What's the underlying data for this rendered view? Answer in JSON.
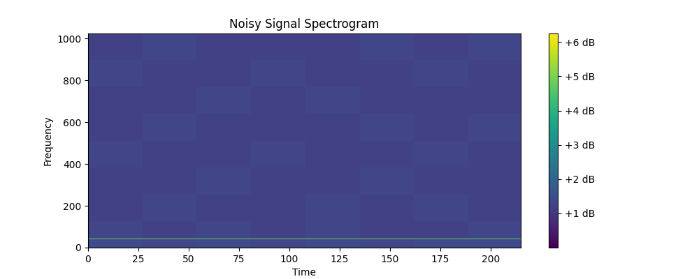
{
  "chart_data": {
    "type": "heatmap",
    "title": "Noisy Signal Spectrogram",
    "x_label": "Time",
    "y_label": "Frequency",
    "xlim": [
      0,
      215
    ],
    "xticks": [
      0,
      25,
      50,
      75,
      100,
      125,
      150,
      175,
      200
    ],
    "ylim": [
      0,
      1024
    ],
    "yticks": [
      0,
      200,
      400,
      600,
      800,
      1000
    ],
    "time_edges": [
      0,
      27,
      54,
      81,
      108,
      135,
      162,
      189,
      215
    ],
    "freq_edges": [
      0,
      39,
      42,
      128,
      256,
      384,
      512,
      640,
      768,
      896,
      1024
    ],
    "cells": [
      [
        1.4,
        1.3,
        1.4,
        1.3,
        1.4,
        1.3,
        1.4,
        1.4
      ],
      [
        4.8,
        4.8,
        4.8,
        4.8,
        4.8,
        4.8,
        4.8,
        4.8
      ],
      [
        1.3,
        1.2,
        1.3,
        1.2,
        1.3,
        1.2,
        1.2,
        1.3
      ],
      [
        1.2,
        1.3,
        1.2,
        1.2,
        1.3,
        1.2,
        1.3,
        1.2
      ],
      [
        1.2,
        1.2,
        1.3,
        1.2,
        1.2,
        1.3,
        1.2,
        1.2
      ],
      [
        1.3,
        1.2,
        1.2,
        1.3,
        1.2,
        1.2,
        1.3,
        1.2
      ],
      [
        1.2,
        1.3,
        1.2,
        1.2,
        1.2,
        1.3,
        1.2,
        1.3
      ],
      [
        1.2,
        1.2,
        1.3,
        1.2,
        1.3,
        1.2,
        1.2,
        1.2
      ],
      [
        1.3,
        1.2,
        1.2,
        1.3,
        1.2,
        1.2,
        1.3,
        1.2
      ],
      [
        1.2,
        1.3,
        1.2,
        1.2,
        1.2,
        1.3,
        1.2,
        1.3
      ]
    ],
    "colorbar": {
      "range": [
        0,
        6.25
      ],
      "ticks": [
        {
          "value": 1,
          "label": "+1 dB"
        },
        {
          "value": 2,
          "label": "+2 dB"
        },
        {
          "value": 3,
          "label": "+3 dB"
        },
        {
          "value": 4,
          "label": "+4 dB"
        },
        {
          "value": 5,
          "label": "+5 dB"
        },
        {
          "value": 6,
          "label": "+6 dB"
        }
      ]
    }
  }
}
